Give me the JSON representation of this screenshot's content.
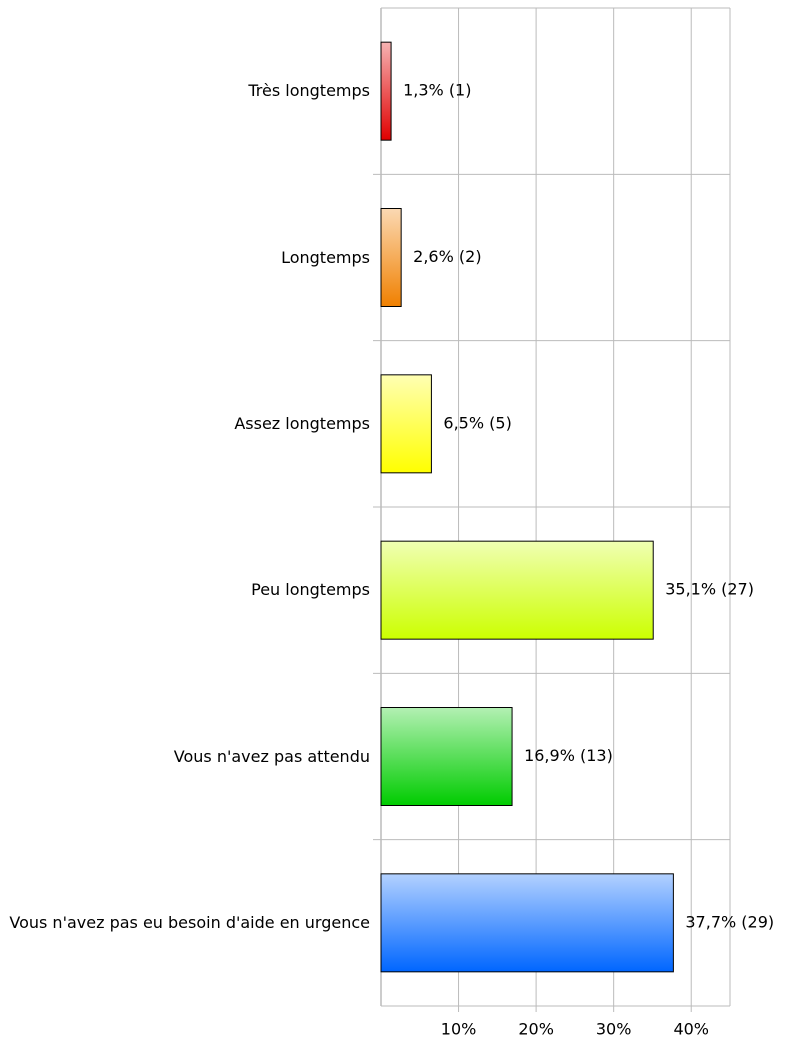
{
  "chart_data": {
    "type": "bar",
    "orientation": "horizontal",
    "categories": [
      "Très longtemps",
      "Longtemps",
      "Assez longtemps",
      "Peu longtemps",
      "Vous n'avez pas attendu",
      "Vous n'avez pas eu besoin d'aide en urgence"
    ],
    "values": [
      1.3,
      2.6,
      6.5,
      35.1,
      16.9,
      37.7
    ],
    "value_labels": [
      "1,3% (1)",
      "2,6% (2)",
      "6,5% (5)",
      "35,1% (27)",
      "16,9% (13)",
      "37,7% (29)"
    ],
    "colors": [
      "#e00000",
      "#f08000",
      "#ffff00",
      "#ccff00",
      "#00cc00",
      "#0066ff"
    ],
    "xlim": [
      0,
      45
    ],
    "xticks": [
      {
        "value": 10,
        "label": "10%"
      },
      {
        "value": 20,
        "label": "20%"
      },
      {
        "value": 30,
        "label": "30%"
      },
      {
        "value": 40,
        "label": "40%"
      }
    ],
    "grid": true
  }
}
